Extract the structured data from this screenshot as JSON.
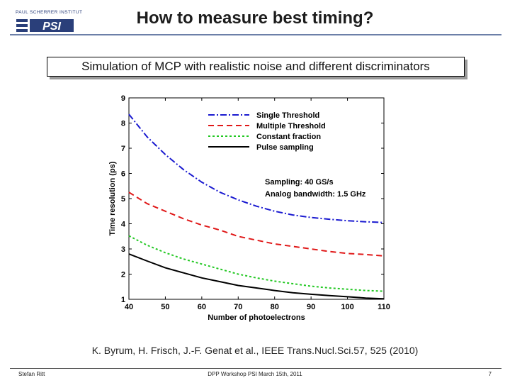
{
  "header": {
    "title": "How to measure best timing?",
    "logo_text_top": "PAUL SCHERRER INSTITUT",
    "logo_text_main": "PSI"
  },
  "banner": {
    "text": "Simulation of MCP with realistic noise and different discriminators"
  },
  "chart_data": {
    "type": "line",
    "title": "",
    "xlabel": "Number of photoelectrons",
    "ylabel": "Time resolution (ps)",
    "xlim": [
      40,
      110
    ],
    "ylim": [
      1,
      9
    ],
    "xticks": [
      40,
      50,
      60,
      70,
      80,
      90,
      100,
      110
    ],
    "yticks": [
      1,
      2,
      3,
      4,
      5,
      6,
      7,
      8,
      9
    ],
    "x": [
      40,
      45,
      50,
      55,
      60,
      65,
      70,
      75,
      80,
      85,
      90,
      95,
      100,
      105,
      110
    ],
    "series": [
      {
        "name": "Single Threshold",
        "color": "#1a1ad0",
        "dash": "9,3,2,3",
        "values": [
          8.35,
          7.45,
          6.75,
          6.15,
          5.65,
          5.25,
          4.95,
          4.7,
          4.5,
          4.35,
          4.25,
          4.18,
          4.12,
          4.08,
          4.05
        ]
      },
      {
        "name": "Multiple Threshold",
        "color": "#e01818",
        "dash": "8,5",
        "values": [
          5.25,
          4.8,
          4.5,
          4.2,
          3.95,
          3.75,
          3.5,
          3.35,
          3.2,
          3.1,
          3.0,
          2.9,
          2.82,
          2.78,
          2.72
        ]
      },
      {
        "name": "Constant fraction",
        "color": "#22c822",
        "dash": "3,3",
        "values": [
          3.52,
          3.15,
          2.85,
          2.6,
          2.4,
          2.2,
          2.0,
          1.85,
          1.72,
          1.62,
          1.52,
          1.45,
          1.4,
          1.35,
          1.32
        ]
      },
      {
        "name": "Pulse sampling",
        "color": "#000000",
        "dash": "",
        "values": [
          2.8,
          2.52,
          2.25,
          2.05,
          1.85,
          1.7,
          1.55,
          1.45,
          1.35,
          1.26,
          1.2,
          1.15,
          1.1,
          1.05,
          1.02
        ]
      }
    ],
    "annotations": [
      "Sampling: 40 GS/s",
      "Analog bandwidth: 1.5 GHz"
    ],
    "legend_position": "top-right"
  },
  "citation": "K. Byrum, H. Frisch, J.-F. Genat et al., IEEE Trans.Nucl.Sci.57, 525 (2010)",
  "footer": {
    "author": "Stefan Ritt",
    "event": "DPP Workshop PSI  March 15th, 2011",
    "page": "7"
  }
}
